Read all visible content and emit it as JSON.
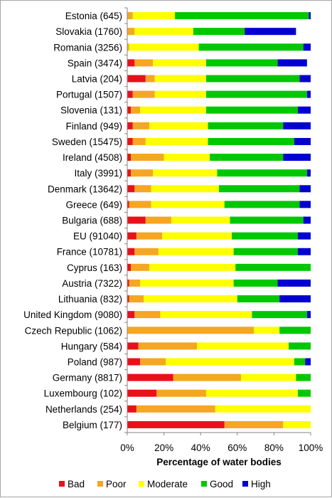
{
  "chart_data": {
    "type": "bar",
    "orientation": "horizontal",
    "stacked": true,
    "xlabel": "Percentage of water bodies",
    "xlim": [
      0,
      100
    ],
    "x_ticks": [
      "0%",
      "20%",
      "40%",
      "60%",
      "80%",
      "100%"
    ],
    "grid": false,
    "legend_position": "bottom",
    "categories": [
      "Estonia (645)",
      "Slovakia (1760)",
      "Romania (3256)",
      "Spain (3474)",
      "Latvia (204)",
      "Portugal (1507)",
      "Slovenia (131)",
      "Finland (949)",
      "Sweden (15475)",
      "Ireland (4508)",
      "Italy (3991)",
      "Denmark (13642)",
      "Greece (649)",
      "Bulgaria (688)",
      "EU (91040)",
      "France (10781)",
      "Cyprus (163)",
      "Austria (7322)",
      "Lithuania (832)",
      "United Kingdom (9080)",
      "Czech Republic (1062)",
      "Hungary (584)",
      "Poland (987)",
      "Germany (8817)",
      "Luxembourg (102)",
      "Netherlands (254)",
      "Belgium (177)"
    ],
    "series": [
      {
        "name": "Bad",
        "color": "#e8111a",
        "values": [
          0,
          0,
          0,
          4,
          10,
          3,
          2,
          3,
          3,
          2,
          2,
          4,
          1,
          10,
          5,
          4,
          2,
          1,
          1,
          4,
          0,
          6,
          7,
          25,
          16,
          5,
          53
        ]
      },
      {
        "name": "Poor",
        "color": "#f5a623",
        "values": [
          3,
          4,
          1,
          10,
          5,
          12,
          5,
          9,
          7,
          18,
          12,
          9,
          12,
          14,
          14,
          13,
          10,
          6,
          8,
          14,
          69,
          32,
          14,
          37,
          27,
          43,
          32
        ]
      },
      {
        "name": "Moderate",
        "color": "#ffff00",
        "values": [
          23,
          32,
          38,
          29,
          28,
          28,
          36,
          32,
          34,
          25,
          35,
          37,
          40,
          32,
          38,
          41,
          47,
          51,
          51,
          50,
          14,
          50,
          70,
          30,
          50,
          52,
          15
        ]
      },
      {
        "name": "Good",
        "color": "#00c800",
        "values": [
          73,
          28,
          57,
          39,
          51,
          55,
          50,
          41,
          47,
          40,
          49,
          44,
          41,
          40,
          36,
          35,
          41,
          24,
          23,
          30,
          17,
          12,
          6,
          8,
          7,
          0,
          0
        ]
      },
      {
        "name": "High",
        "color": "#0000d0",
        "values": [
          1,
          28,
          4,
          16,
          6,
          2,
          7,
          15,
          9,
          15,
          2,
          6,
          6,
          4,
          7,
          7,
          0,
          18,
          17,
          2,
          0,
          0,
          3,
          0,
          0,
          0,
          0
        ]
      }
    ]
  }
}
